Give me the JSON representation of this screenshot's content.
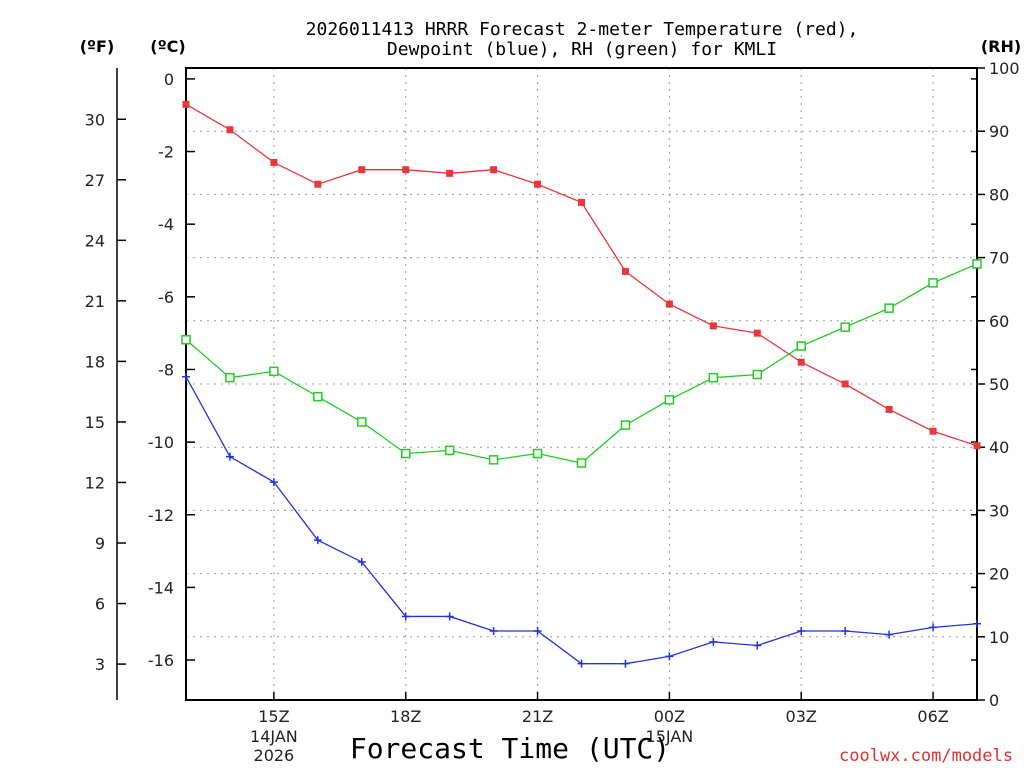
{
  "chart_data": {
    "type": "line",
    "title_line1": "2026011413 HRRR Forecast 2-meter Temperature (red),",
    "title_line2": "Dewpoint (blue), RH (green) for KMLI",
    "xlabel": "Forecast Time (UTC)",
    "credit": "coolwx.com/models",
    "unit_f": "(ºF)",
    "unit_c": "(ºC)",
    "unit_rh": "(RH)",
    "x_hours": [
      13,
      14,
      15,
      16,
      17,
      18,
      19,
      20,
      21,
      22,
      23,
      24,
      25,
      26,
      27,
      28,
      29,
      30,
      31
    ],
    "xlim": [
      13,
      31
    ],
    "x_ticks": [
      {
        "hour": 15,
        "label": "15Z",
        "sub1": "14JAN",
        "sub2": "2026"
      },
      {
        "hour": 18,
        "label": "18Z",
        "sub1": "",
        "sub2": ""
      },
      {
        "hour": 21,
        "label": "21Z",
        "sub1": "",
        "sub2": ""
      },
      {
        "hour": 24,
        "label": "00Z",
        "sub1": "15JAN",
        "sub2": ""
      },
      {
        "hour": 27,
        "label": "03Z",
        "sub1": "",
        "sub2": ""
      },
      {
        "hour": 30,
        "label": "06Z",
        "sub1": "",
        "sub2": ""
      }
    ],
    "c_axis": {
      "min": -17.1,
      "max": 0.3,
      "ticks": [
        0,
        -2,
        -4,
        -6,
        -8,
        -10,
        -12,
        -14,
        -16
      ]
    },
    "f_ticks": [
      30,
      27,
      24,
      21,
      18,
      15,
      12,
      9,
      6,
      3
    ],
    "rh_axis": {
      "min": 0,
      "max": 100,
      "ticks": [
        0,
        10,
        20,
        30,
        40,
        50,
        60,
        70,
        80,
        90,
        100
      ]
    },
    "series": [
      {
        "name": "Temperature",
        "units": "C",
        "color": "#e8383d",
        "marker": "filled-square",
        "values": [
          -0.7,
          -1.4,
          -2.3,
          -2.9,
          -2.5,
          -2.5,
          -2.6,
          -2.5,
          -2.9,
          -3.4,
          -5.3,
          -6.2,
          -6.8,
          -7.0,
          -7.8,
          -8.4,
          -9.1,
          -9.7,
          -10.1
        ]
      },
      {
        "name": "Dewpoint",
        "units": "C",
        "color": "#2233dd",
        "marker": "plus",
        "values": [
          -8.2,
          -10.4,
          -11.1,
          -12.7,
          -13.3,
          -14.8,
          -14.8,
          -15.2,
          -15.2,
          -16.1,
          -16.1,
          -15.9,
          -15.5,
          -15.6,
          -15.2,
          -15.2,
          -15.3,
          -15.1,
          -15.0
        ]
      },
      {
        "name": "RH",
        "units": "%",
        "color": "#22cc22",
        "marker": "open-square",
        "values": [
          57,
          51,
          52,
          48,
          44,
          39,
          39.5,
          38,
          39,
          37.5,
          43.5,
          47.5,
          51,
          51.5,
          56,
          59,
          62,
          66,
          69
        ]
      }
    ]
  }
}
